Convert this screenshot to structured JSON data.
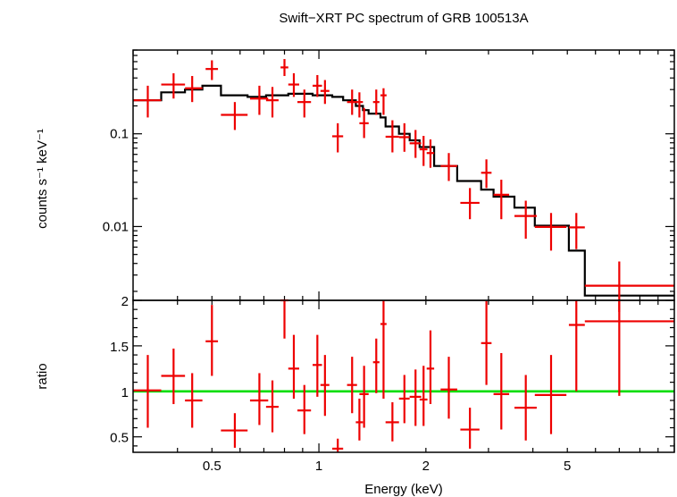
{
  "colors": {
    "data": "#ee0000",
    "model": "#000000",
    "unity_line": "#00dd00",
    "frame": "#000000",
    "background": "#ffffff"
  },
  "chart_data": [
    {
      "type": "scatter",
      "title": "Swift−XRT PC spectrum of GRB 100513A",
      "xlabel": "",
      "ylabel": "counts s⁻¹ keV⁻¹",
      "x_scale": "log",
      "y_scale": "log",
      "xlim": [
        0.3,
        10
      ],
      "ylim": [
        0.0016,
        0.8
      ],
      "x_tick_labels": [],
      "y_ticks": [
        {
          "value": 0.1,
          "label": "0.1"
        },
        {
          "value": 0.01,
          "label": "0.01"
        }
      ],
      "series": [
        {
          "kind": "data-with-errorbars",
          "points": [
            {
              "x": 0.33,
              "x_lo": 0.3,
              "x_hi": 0.36,
              "y": 0.23,
              "y_lo": 0.15,
              "y_hi": 0.33
            },
            {
              "x": 0.39,
              "x_lo": 0.36,
              "x_hi": 0.42,
              "y": 0.34,
              "y_lo": 0.24,
              "y_hi": 0.45
            },
            {
              "x": 0.44,
              "x_lo": 0.42,
              "x_hi": 0.47,
              "y": 0.31,
              "y_lo": 0.22,
              "y_hi": 0.42
            },
            {
              "x": 0.5,
              "x_lo": 0.48,
              "x_hi": 0.52,
              "y": 0.5,
              "y_lo": 0.38,
              "y_hi": 0.62
            },
            {
              "x": 0.58,
              "x_lo": 0.53,
              "x_hi": 0.63,
              "y": 0.16,
              "y_lo": 0.11,
              "y_hi": 0.22
            },
            {
              "x": 0.68,
              "x_lo": 0.64,
              "x_hi": 0.72,
              "y": 0.24,
              "y_lo": 0.16,
              "y_hi": 0.33
            },
            {
              "x": 0.74,
              "x_lo": 0.71,
              "x_hi": 0.77,
              "y": 0.23,
              "y_lo": 0.15,
              "y_hi": 0.32
            },
            {
              "x": 0.8,
              "x_lo": 0.78,
              "x_hi": 0.82,
              "y": 0.52,
              "y_lo": 0.42,
              "y_hi": 0.64
            },
            {
              "x": 0.85,
              "x_lo": 0.82,
              "x_hi": 0.88,
              "y": 0.34,
              "y_lo": 0.25,
              "y_hi": 0.45
            },
            {
              "x": 0.91,
              "x_lo": 0.87,
              "x_hi": 0.95,
              "y": 0.22,
              "y_lo": 0.15,
              "y_hi": 0.3
            },
            {
              "x": 0.99,
              "x_lo": 0.96,
              "x_hi": 1.02,
              "y": 0.33,
              "y_lo": 0.25,
              "y_hi": 0.43
            },
            {
              "x": 1.04,
              "x_lo": 1.01,
              "x_hi": 1.07,
              "y": 0.29,
              "y_lo": 0.21,
              "y_hi": 0.38
            },
            {
              "x": 1.13,
              "x_lo": 1.09,
              "x_hi": 1.17,
              "y": 0.094,
              "y_lo": 0.063,
              "y_hi": 0.13
            },
            {
              "x": 1.24,
              "x_lo": 1.2,
              "x_hi": 1.28,
              "y": 0.22,
              "y_lo": 0.16,
              "y_hi": 0.3
            },
            {
              "x": 1.3,
              "x_lo": 1.27,
              "x_hi": 1.33,
              "y": 0.22,
              "y_lo": 0.15,
              "y_hi": 0.28
            },
            {
              "x": 1.34,
              "x_lo": 1.3,
              "x_hi": 1.38,
              "y": 0.13,
              "y_lo": 0.09,
              "y_hi": 0.19
            },
            {
              "x": 1.45,
              "x_lo": 1.42,
              "x_hi": 1.48,
              "y": 0.22,
              "y_lo": 0.16,
              "y_hi": 0.3
            },
            {
              "x": 1.52,
              "x_lo": 1.49,
              "x_hi": 1.55,
              "y": 0.26,
              "y_lo": 0.16,
              "y_hi": 0.31
            },
            {
              "x": 1.61,
              "x_lo": 1.54,
              "x_hi": 1.68,
              "y": 0.093,
              "y_lo": 0.063,
              "y_hi": 0.14
            },
            {
              "x": 1.74,
              "x_lo": 1.68,
              "x_hi": 1.8,
              "y": 0.092,
              "y_lo": 0.064,
              "y_hi": 0.13
            },
            {
              "x": 1.87,
              "x_lo": 1.8,
              "x_hi": 1.94,
              "y": 0.079,
              "y_lo": 0.055,
              "y_hi": 0.11
            },
            {
              "x": 1.97,
              "x_lo": 1.92,
              "x_hi": 2.02,
              "y": 0.068,
              "y_lo": 0.045,
              "y_hi": 0.095
            },
            {
              "x": 2.06,
              "x_lo": 2.01,
              "x_hi": 2.11,
              "y": 0.062,
              "y_lo": 0.043,
              "y_hi": 0.087
            },
            {
              "x": 2.32,
              "x_lo": 2.2,
              "x_hi": 2.45,
              "y": 0.045,
              "y_lo": 0.031,
              "y_hi": 0.062
            },
            {
              "x": 2.66,
              "x_lo": 2.5,
              "x_hi": 2.83,
              "y": 0.018,
              "y_lo": 0.012,
              "y_hi": 0.026
            },
            {
              "x": 2.96,
              "x_lo": 2.86,
              "x_hi": 3.06,
              "y": 0.038,
              "y_lo": 0.026,
              "y_hi": 0.053
            },
            {
              "x": 3.26,
              "x_lo": 3.1,
              "x_hi": 3.43,
              "y": 0.022,
              "y_lo": 0.012,
              "y_hi": 0.032
            },
            {
              "x": 3.82,
              "x_lo": 3.55,
              "x_hi": 4.1,
              "y": 0.013,
              "y_lo": 0.0074,
              "y_hi": 0.019
            },
            {
              "x": 4.5,
              "x_lo": 4.05,
              "x_hi": 4.97,
              "y": 0.0099,
              "y_lo": 0.0055,
              "y_hi": 0.014
            },
            {
              "x": 5.3,
              "x_lo": 5.05,
              "x_hi": 5.6,
              "y": 0.0098,
              "y_lo": 0.0057,
              "y_hi": 0.014
            },
            {
              "x": 7.0,
              "x_lo": 5.6,
              "x_hi": 10.0,
              "y": 0.0023,
              "y_lo": 0.0012,
              "y_hi": 0.0042
            }
          ]
        },
        {
          "kind": "model-step",
          "bins": [
            {
              "x_lo": 0.3,
              "x_hi": 0.36,
              "y": 0.23
            },
            {
              "x_lo": 0.36,
              "x_hi": 0.42,
              "y": 0.28
            },
            {
              "x_lo": 0.42,
              "x_hi": 0.47,
              "y": 0.3
            },
            {
              "x_lo": 0.47,
              "x_hi": 0.53,
              "y": 0.33
            },
            {
              "x_lo": 0.53,
              "x_hi": 0.63,
              "y": 0.26
            },
            {
              "x_lo": 0.63,
              "x_hi": 0.71,
              "y": 0.25
            },
            {
              "x_lo": 0.71,
              "x_hi": 0.82,
              "y": 0.26
            },
            {
              "x_lo": 0.82,
              "x_hi": 0.88,
              "y": 0.27
            },
            {
              "x_lo": 0.88,
              "x_hi": 0.96,
              "y": 0.27
            },
            {
              "x_lo": 0.96,
              "x_hi": 1.09,
              "y": 0.26
            },
            {
              "x_lo": 1.09,
              "x_hi": 1.17,
              "y": 0.25
            },
            {
              "x_lo": 1.17,
              "x_hi": 1.27,
              "y": 0.23
            },
            {
              "x_lo": 1.27,
              "x_hi": 1.33,
              "y": 0.2
            },
            {
              "x_lo": 1.33,
              "x_hi": 1.38,
              "y": 0.18
            },
            {
              "x_lo": 1.38,
              "x_hi": 1.49,
              "y": 0.165
            },
            {
              "x_lo": 1.49,
              "x_hi": 1.54,
              "y": 0.15
            },
            {
              "x_lo": 1.54,
              "x_hi": 1.68,
              "y": 0.12
            },
            {
              "x_lo": 1.68,
              "x_hi": 1.8,
              "y": 0.1
            },
            {
              "x_lo": 1.8,
              "x_hi": 1.92,
              "y": 0.085
            },
            {
              "x_lo": 1.92,
              "x_hi": 2.11,
              "y": 0.072
            },
            {
              "x_lo": 2.11,
              "x_hi": 2.45,
              "y": 0.045
            },
            {
              "x_lo": 2.45,
              "x_hi": 2.86,
              "y": 0.031
            },
            {
              "x_lo": 2.86,
              "x_hi": 3.1,
              "y": 0.025
            },
            {
              "x_lo": 3.1,
              "x_hi": 3.55,
              "y": 0.021
            },
            {
              "x_lo": 3.55,
              "x_hi": 4.05,
              "y": 0.016
            },
            {
              "x_lo": 4.05,
              "x_hi": 5.05,
              "y": 0.0102
            },
            {
              "x_lo": 5.05,
              "x_hi": 5.6,
              "y": 0.0055
            },
            {
              "x_lo": 5.6,
              "x_hi": 10.0,
              "y": 0.0018
            }
          ]
        }
      ],
      "grid": false,
      "legend": "none"
    },
    {
      "type": "scatter",
      "xlabel": "Energy (keV)",
      "ylabel": "ratio",
      "x_scale": "log",
      "y_scale": "linear",
      "xlim": [
        0.3,
        10
      ],
      "ylim": [
        0.33,
        2.0
      ],
      "x_ticks": [
        {
          "value": 0.5,
          "label": "0.5"
        },
        {
          "value": 1,
          "label": "1"
        },
        {
          "value": 2,
          "label": "2"
        },
        {
          "value": 5,
          "label": "5"
        }
      ],
      "y_ticks": [
        {
          "value": 0.5,
          "label": "0.5"
        },
        {
          "value": 1,
          "label": "1"
        },
        {
          "value": 1.5,
          "label": "1.5"
        },
        {
          "value": 2,
          "label": "2"
        }
      ],
      "reference_line": {
        "y": 1
      },
      "series": [
        {
          "kind": "ratio-with-errorbars",
          "points": [
            {
              "x": 0.33,
              "x_lo": 0.3,
              "x_hi": 0.36,
              "y": 1.01,
              "y_lo": 0.6,
              "y_hi": 1.4
            },
            {
              "x": 0.39,
              "x_lo": 0.36,
              "x_hi": 0.42,
              "y": 1.17,
              "y_lo": 0.86,
              "y_hi": 1.47
            },
            {
              "x": 0.44,
              "x_lo": 0.42,
              "x_hi": 0.47,
              "y": 0.9,
              "y_lo": 0.6,
              "y_hi": 1.2
            },
            {
              "x": 0.5,
              "x_lo": 0.48,
              "x_hi": 0.52,
              "y": 1.55,
              "y_lo": 1.17,
              "y_hi": 1.95
            },
            {
              "x": 0.58,
              "x_lo": 0.53,
              "x_hi": 0.63,
              "y": 0.57,
              "y_lo": 0.38,
              "y_hi": 0.76
            },
            {
              "x": 0.68,
              "x_lo": 0.64,
              "x_hi": 0.72,
              "y": 0.9,
              "y_lo": 0.63,
              "y_hi": 1.2
            },
            {
              "x": 0.74,
              "x_lo": 0.71,
              "x_hi": 0.77,
              "y": 0.83,
              "y_lo": 0.55,
              "y_hi": 1.12
            },
            {
              "x": 0.8,
              "x_lo": 0.78,
              "x_hi": 0.82,
              "y": 2.0,
              "y_lo": 1.58,
              "y_hi": 2.0
            },
            {
              "x": 0.85,
              "x_lo": 0.82,
              "x_hi": 0.88,
              "y": 1.25,
              "y_lo": 0.92,
              "y_hi": 1.62
            },
            {
              "x": 0.91,
              "x_lo": 0.87,
              "x_hi": 0.95,
              "y": 0.79,
              "y_lo": 0.53,
              "y_hi": 1.07
            },
            {
              "x": 0.99,
              "x_lo": 0.96,
              "x_hi": 1.02,
              "y": 1.29,
              "y_lo": 0.94,
              "y_hi": 1.62
            },
            {
              "x": 1.04,
              "x_lo": 1.01,
              "x_hi": 1.07,
              "y": 1.07,
              "y_lo": 0.73,
              "y_hi": 1.4
            },
            {
              "x": 1.13,
              "x_lo": 1.09,
              "x_hi": 1.17,
              "y": 0.37,
              "y_lo": 0.33,
              "y_hi": 0.48
            },
            {
              "x": 1.24,
              "x_lo": 1.2,
              "x_hi": 1.28,
              "y": 1.07,
              "y_lo": 0.76,
              "y_hi": 1.38
            },
            {
              "x": 1.3,
              "x_lo": 1.27,
              "x_hi": 1.33,
              "y": 0.66,
              "y_lo": 0.46,
              "y_hi": 0.92
            },
            {
              "x": 1.34,
              "x_lo": 1.3,
              "x_hi": 1.38,
              "y": 0.97,
              "y_lo": 0.6,
              "y_hi": 1.28
            },
            {
              "x": 1.45,
              "x_lo": 1.42,
              "x_hi": 1.48,
              "y": 1.32,
              "y_lo": 0.98,
              "y_hi": 1.58
            },
            {
              "x": 1.52,
              "x_lo": 1.49,
              "x_hi": 1.55,
              "y": 1.74,
              "y_lo": 0.92,
              "y_hi": 2.0
            },
            {
              "x": 1.61,
              "x_lo": 1.54,
              "x_hi": 1.68,
              "y": 0.66,
              "y_lo": 0.45,
              "y_hi": 0.88
            },
            {
              "x": 1.74,
              "x_lo": 1.68,
              "x_hi": 1.8,
              "y": 0.92,
              "y_lo": 0.65,
              "y_hi": 1.18
            },
            {
              "x": 1.87,
              "x_lo": 1.8,
              "x_hi": 1.94,
              "y": 0.94,
              "y_lo": 0.62,
              "y_hi": 1.24
            },
            {
              "x": 1.97,
              "x_lo": 1.92,
              "x_hi": 2.02,
              "y": 0.91,
              "y_lo": 0.62,
              "y_hi": 1.28
            },
            {
              "x": 2.06,
              "x_lo": 2.01,
              "x_hi": 2.11,
              "y": 1.25,
              "y_lo": 0.86,
              "y_hi": 1.67
            },
            {
              "x": 2.32,
              "x_lo": 2.2,
              "x_hi": 2.45,
              "y": 1.02,
              "y_lo": 0.7,
              "y_hi": 1.38
            },
            {
              "x": 2.66,
              "x_lo": 2.5,
              "x_hi": 2.83,
              "y": 0.58,
              "y_lo": 0.37,
              "y_hi": 0.82
            },
            {
              "x": 2.96,
              "x_lo": 2.86,
              "x_hi": 3.06,
              "y": 1.53,
              "y_lo": 1.07,
              "y_hi": 1.99
            },
            {
              "x": 3.26,
              "x_lo": 3.1,
              "x_hi": 3.43,
              "y": 0.97,
              "y_lo": 0.58,
              "y_hi": 1.42
            },
            {
              "x": 3.82,
              "x_lo": 3.55,
              "x_hi": 4.1,
              "y": 0.82,
              "y_lo": 0.46,
              "y_hi": 1.18
            },
            {
              "x": 4.5,
              "x_lo": 4.05,
              "x_hi": 4.97,
              "y": 0.96,
              "y_lo": 0.53,
              "y_hi": 1.4
            },
            {
              "x": 5.3,
              "x_lo": 5.05,
              "x_hi": 5.6,
              "y": 1.73,
              "y_lo": 1.0,
              "y_hi": 2.0
            },
            {
              "x": 7.0,
              "x_lo": 5.6,
              "x_hi": 10.0,
              "y": 1.77,
              "y_lo": 0.95,
              "y_hi": 2.0
            }
          ]
        }
      ],
      "grid": false,
      "legend": "none"
    }
  ]
}
